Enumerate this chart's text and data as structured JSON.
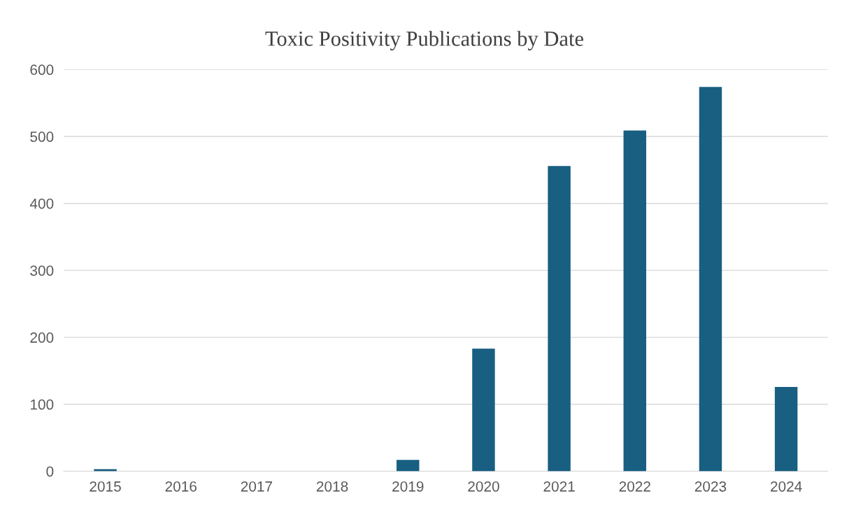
{
  "chart_data": {
    "type": "bar",
    "title": "Toxic Positivity Publications by Date",
    "categories": [
      "2015",
      "2016",
      "2017",
      "2018",
      "2019",
      "2020",
      "2021",
      "2022",
      "2023",
      "2024"
    ],
    "values": [
      3,
      0,
      0,
      0,
      17,
      183,
      456,
      509,
      574,
      126
    ],
    "color": "#185f82",
    "ylim": [
      0,
      600
    ],
    "yticks": [
      0,
      100,
      200,
      300,
      400,
      500,
      600
    ],
    "grid": "y"
  }
}
